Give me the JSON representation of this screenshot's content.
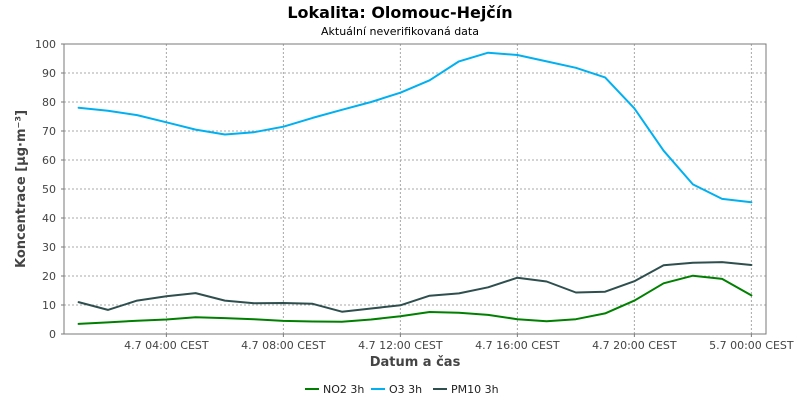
{
  "chart_data": {
    "type": "line",
    "title": "Lokalita: Olomouc-Hejčín",
    "subtitle": "Aktuální neverifikovaná data",
    "xlabel": "Datum a čas",
    "ylabel": "Koncentrace [µg·m⁻³]",
    "ylim": [
      0,
      100
    ],
    "y_ticks": [
      0,
      10,
      20,
      30,
      40,
      50,
      60,
      70,
      80,
      90,
      100
    ],
    "x_ticks": [
      {
        "t": 4,
        "label": "4.7 04:00 CEST"
      },
      {
        "t": 8,
        "label": "4.7 08:00 CEST"
      },
      {
        "t": 12,
        "label": "4.7 12:00 CEST"
      },
      {
        "t": 16,
        "label": "4.7 16:00 CEST"
      },
      {
        "t": 20,
        "label": "4.7 20:00 CEST"
      },
      {
        "t": 24,
        "label": "5.7 00:00 CEST"
      }
    ],
    "xlim": [
      0.5,
      24.5
    ],
    "grid": true,
    "legend_position": "bottom",
    "x": [
      1,
      2,
      3,
      4,
      5,
      6,
      7,
      8,
      9,
      10,
      11,
      12,
      13,
      14,
      15,
      16,
      17,
      18,
      19,
      20,
      21,
      22,
      23,
      24
    ],
    "series": [
      {
        "name": "NO2 3h",
        "color": "#008000",
        "values": [
          3.5,
          4,
          4.6,
          5,
          5.8,
          5.5,
          5.1,
          4.5,
          4.3,
          4.2,
          5,
          6.1,
          7.6,
          7.3,
          6.6,
          5.1,
          4.4,
          5.1,
          7.1,
          11.5,
          17.5,
          20.1,
          19,
          13.3
        ]
      },
      {
        "name": "O3 3h",
        "color": "#00b0f0",
        "values": [
          78,
          77,
          75.5,
          73,
          70.5,
          68.8,
          69.6,
          71.5,
          74.5,
          77.3,
          80,
          83.2,
          87.5,
          94,
          97,
          96.2,
          94,
          91.8,
          88.5,
          77.8,
          63.2,
          51.6,
          46.6,
          45.4
        ]
      },
      {
        "name": "PM10 3h",
        "color": "#2f4f4f",
        "values": [
          11,
          8.3,
          11.5,
          13,
          14.1,
          11.5,
          10.6,
          10.7,
          10.4,
          7.7,
          8.8,
          9.9,
          13.2,
          14,
          16.1,
          19.4,
          18.1,
          14.3,
          14.6,
          18.2,
          23.7,
          24.6,
          24.8,
          23.8
        ]
      }
    ]
  }
}
